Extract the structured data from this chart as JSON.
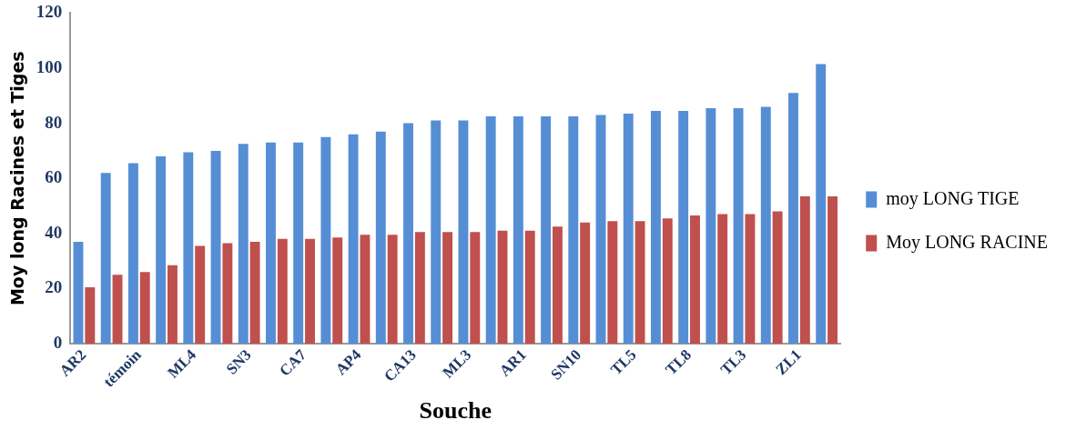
{
  "chart_data": {
    "type": "bar",
    "xlabel": "Souche",
    "ylabel": "Moy long Racines et Tiges",
    "categories": [
      "AR2",
      null,
      "témoin",
      null,
      "ML4",
      null,
      "SN3",
      null,
      "CA7",
      null,
      "AP4",
      null,
      "CA13",
      null,
      "ML3",
      null,
      "AR1",
      null,
      "SN10",
      null,
      "TL5",
      null,
      "TL8",
      null,
      "TL3",
      null,
      "ZL1",
      null
    ],
    "series": [
      {
        "name": "moy LONG TIGE",
        "color": "#558ed5",
        "values": [
          37,
          62,
          65.5,
          68,
          69.5,
          70,
          72.5,
          73,
          73,
          75,
          76,
          77,
          80,
          81,
          81,
          82.5,
          82.5,
          82.5,
          82.5,
          83,
          83.5,
          84.5,
          84.5,
          85.5,
          85.5,
          86,
          91,
          101.5
        ]
      },
      {
        "name": "Moy LONG RACINE",
        "color": "#c0504d",
        "values": [
          20.5,
          25,
          26,
          28.5,
          35.5,
          36.5,
          37,
          38,
          38,
          38.5,
          39.5,
          39.5,
          40.5,
          40.5,
          40.5,
          41,
          41,
          42.5,
          44,
          44.5,
          44.5,
          45.5,
          46.5,
          47,
          47,
          48,
          53.5,
          53.5
        ]
      }
    ],
    "ylim": [
      0,
      120
    ],
    "yticks": [
      0,
      20,
      40,
      60,
      80,
      100,
      120
    ],
    "grid": false,
    "legend": "right"
  }
}
